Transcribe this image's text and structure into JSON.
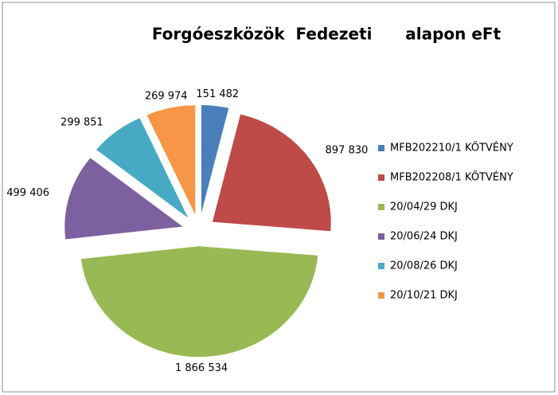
{
  "chart_data": {
    "type": "pie",
    "title": "Forgóeszközök  Fedezeti      alapon eFt",
    "categories": [
      "MFB202210/1 KÖTVÉNY",
      "MFB202208/1 KÖTVÉNY",
      "20/04/29 DKJ",
      "20/06/24 DKJ",
      "20/08/26 DKJ",
      "20/10/21 DKJ"
    ],
    "values": [
      151482,
      897830,
      1866534,
      499406,
      299851,
      269974
    ],
    "value_labels": [
      "151 482",
      "897 830",
      "1 866 534",
      "499 406",
      "299 851",
      "269 974"
    ],
    "colors": [
      "#4a7ebb",
      "#be4b48",
      "#98b954",
      "#7d60a0",
      "#46aac5",
      "#f79646"
    ],
    "legend": "right"
  }
}
